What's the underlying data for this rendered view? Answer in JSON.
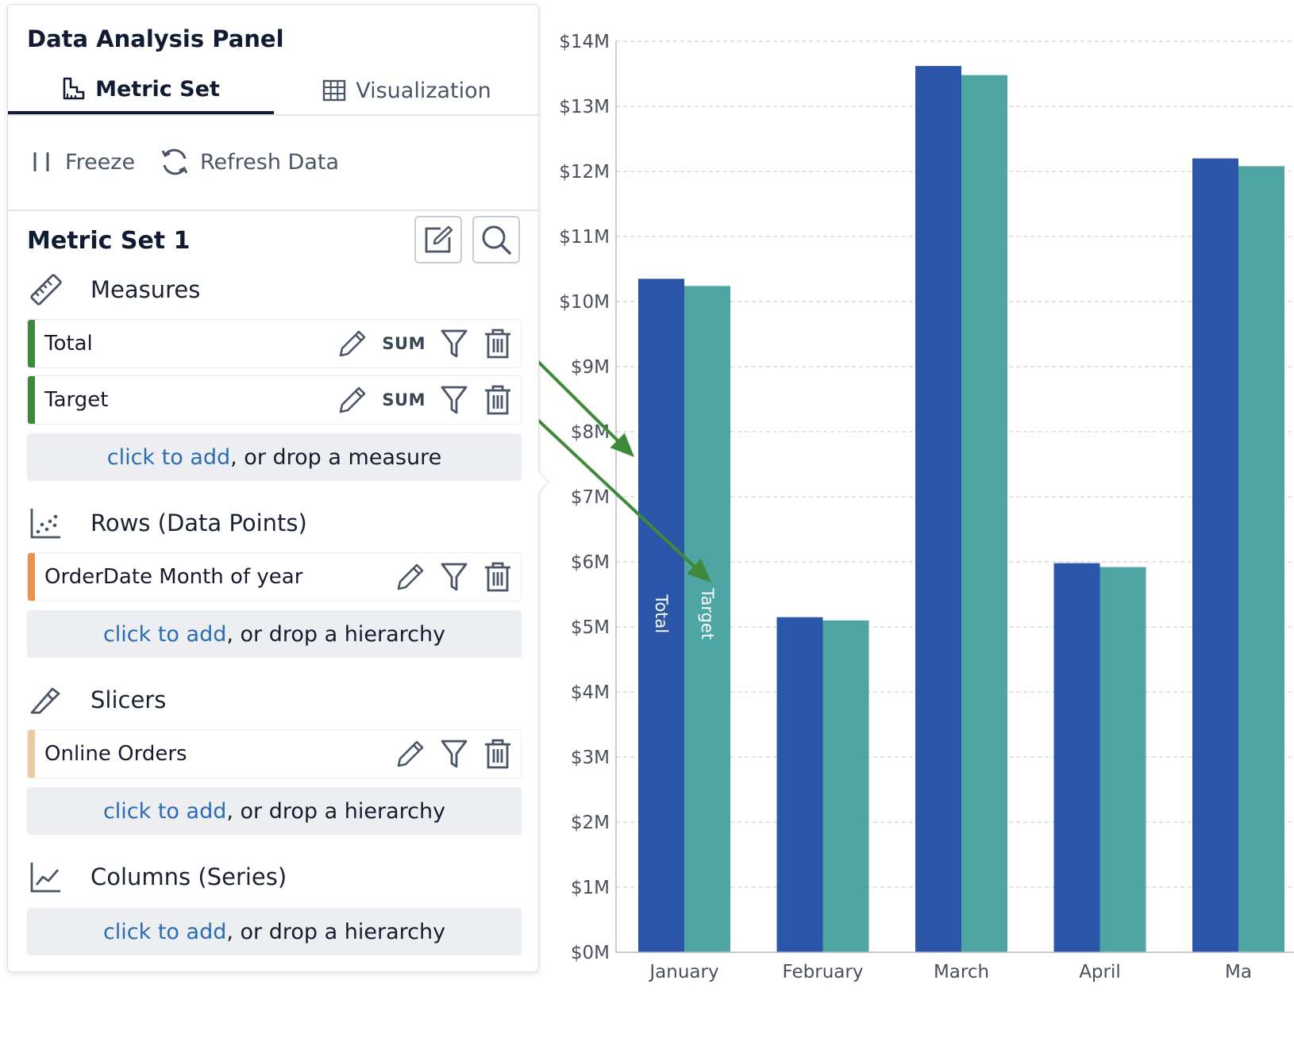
{
  "panel": {
    "title": "Data Analysis Panel",
    "tabs": [
      {
        "label": "Metric Set",
        "active": true,
        "icon": "metric-set-icon"
      },
      {
        "label": "Visualization",
        "active": false,
        "icon": "grid-icon"
      }
    ],
    "toolbar": {
      "freeze_label": "Freeze",
      "refresh_label": "Refresh Data"
    },
    "metric_set_title": "Metric Set 1",
    "sections": {
      "measures": {
        "title": "Measures",
        "items": [
          {
            "label": "Total",
            "aggregation": "SUM",
            "color": "#3f8a3a"
          },
          {
            "label": "Target",
            "aggregation": "SUM",
            "color": "#3f8a3a"
          }
        ],
        "drop": {
          "link": "click to add",
          "rest": ", or drop a measure"
        }
      },
      "rows": {
        "title": "Rows (Data Points)",
        "items": [
          {
            "label": "OrderDate Month of year",
            "color": "#e8924a"
          }
        ],
        "drop": {
          "link": "click to add",
          "rest": ", or drop a hierarchy"
        }
      },
      "slicers": {
        "title": "Slicers",
        "items": [
          {
            "label": "Online Orders",
            "color": "#edc9a3"
          }
        ],
        "drop": {
          "link": "click to add",
          "rest": ", or drop a hierarchy"
        }
      },
      "columns": {
        "title": "Columns (Series)",
        "drop": {
          "link": "click to add",
          "rest": ", or drop a hierarchy"
        }
      }
    }
  },
  "chart_data": {
    "type": "bar",
    "categories": [
      "January",
      "February",
      "March",
      "April",
      "Ma"
    ],
    "series": [
      {
        "name": "Total",
        "values": [
          10.35,
          5.15,
          13.62,
          5.98,
          12.2
        ],
        "color": "#2b55a8"
      },
      {
        "name": "Target",
        "values": [
          10.24,
          5.1,
          13.48,
          5.92,
          12.08
        ],
        "color": "#4da6a4"
      }
    ],
    "yticks": [
      "$0M",
      "$1M",
      "$2M",
      "$3M",
      "$4M",
      "$5M",
      "$6M",
      "$7M",
      "$8M",
      "$9M",
      "$10M",
      "$11M",
      "$12M",
      "$13M",
      "$14M"
    ],
    "ylim": [
      0,
      14
    ],
    "y_unit": "$M",
    "grid": true,
    "bar_labels_on": [
      "January"
    ],
    "annotation_arrows_color": "#3f8a3a"
  }
}
